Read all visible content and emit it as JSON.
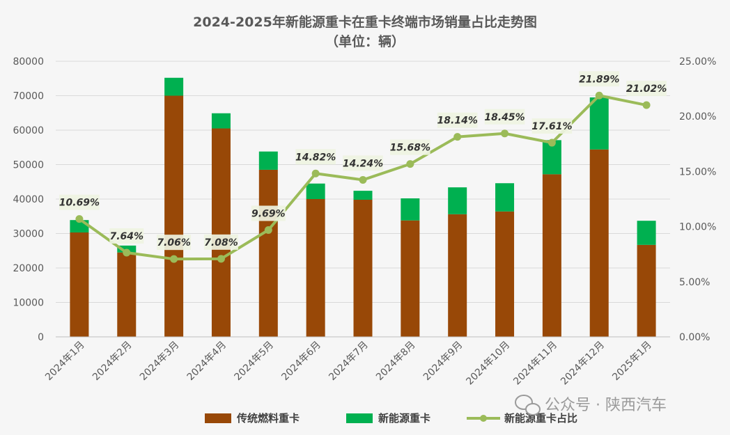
{
  "chart_data": {
    "type": "bar",
    "title": "2024-2025年新能源重卡在重卡终端市场销量占比走势图",
    "subtitle": "（单位：辆）",
    "categories": [
      "2024年1月",
      "2024年2月",
      "2024年3月",
      "2024年4月",
      "2024年5月",
      "2024年6月",
      "2024年7月",
      "2024年8月",
      "2024年9月",
      "2024年10月",
      "2024年11月",
      "2024年12月",
      "2025年1月"
    ],
    "series": [
      {
        "name": "传统燃料重卡",
        "kind": "bar-stack",
        "color": "#984807",
        "values": [
          30300,
          24500,
          70000,
          60500,
          48500,
          40000,
          39800,
          33800,
          35600,
          36400,
          47200,
          54400,
          26700
        ]
      },
      {
        "name": "新能源重卡",
        "kind": "bar-stack",
        "color": "#00b050",
        "values": [
          3600,
          2000,
          5200,
          4400,
          5300,
          4500,
          2600,
          6400,
          7800,
          8200,
          9900,
          15100,
          7000
        ]
      },
      {
        "name": "新能源重卡占比",
        "kind": "line",
        "axis": "right",
        "color": "#9bbb59",
        "values": [
          10.69,
          7.64,
          7.06,
          7.08,
          9.69,
          14.82,
          14.24,
          15.68,
          18.14,
          18.45,
          17.61,
          21.89,
          21.02
        ],
        "labels": [
          "10.69%",
          "7.64%",
          "7.06%",
          "7.08%",
          "9.69%",
          "14.82%",
          "14.24%",
          "15.68%",
          "18.14%",
          "18.45%",
          "17.61%",
          "21.89%",
          "21.02%"
        ]
      }
    ],
    "y_left": {
      "min": 0,
      "max": 80000,
      "step": 10000,
      "ticks": [
        "0",
        "10000",
        "20000",
        "30000",
        "40000",
        "50000",
        "60000",
        "70000",
        "80000"
      ]
    },
    "y_right": {
      "min": 0,
      "max": 25,
      "step": 5,
      "ticks": [
        "0.00%",
        "5.00%",
        "10.00%",
        "15.00%",
        "20.00%",
        "25.00%"
      ]
    },
    "grid": true,
    "legend": "bottom"
  },
  "watermark": {
    "text": "公众号 · 陕西汽车"
  }
}
